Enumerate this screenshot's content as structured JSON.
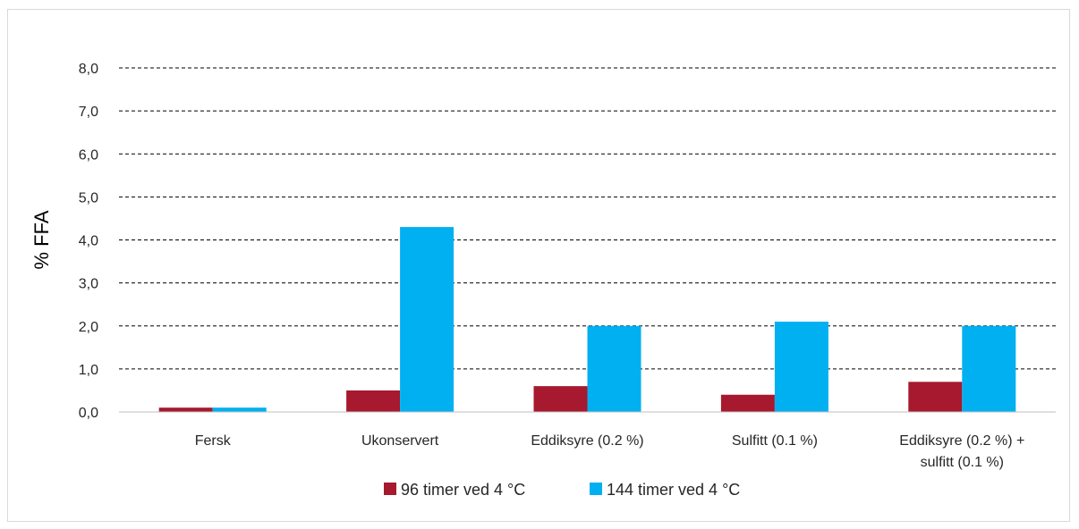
{
  "chart_data": {
    "type": "bar",
    "title": "",
    "xlabel": "",
    "ylabel": "% FFA",
    "ylim": [
      0,
      8
    ],
    "yticks": [
      "0,0",
      "1,0",
      "2,0",
      "3,0",
      "4,0",
      "5,0",
      "6,0",
      "7,0",
      "8,0"
    ],
    "grid": "horizontal dashed",
    "legend_position": "bottom",
    "categories": [
      [
        "Fersk"
      ],
      [
        "Ukonservert"
      ],
      [
        "Eddiksyre (0.2 %)"
      ],
      [
        "Sulfitt (0.1 %)"
      ],
      [
        "Eddiksyre (0.2 %) +",
        "sulfitt (0.1 %)"
      ]
    ],
    "series": [
      {
        "name": "96 timer ved 4 °C",
        "color": "#a6192e",
        "values": [
          0.1,
          0.5,
          0.6,
          0.4,
          0.7
        ]
      },
      {
        "name": "144 timer ved 4 °C",
        "color": "#00b0f0",
        "values": [
          0.1,
          4.3,
          2.0,
          2.1,
          2.0
        ]
      }
    ]
  }
}
